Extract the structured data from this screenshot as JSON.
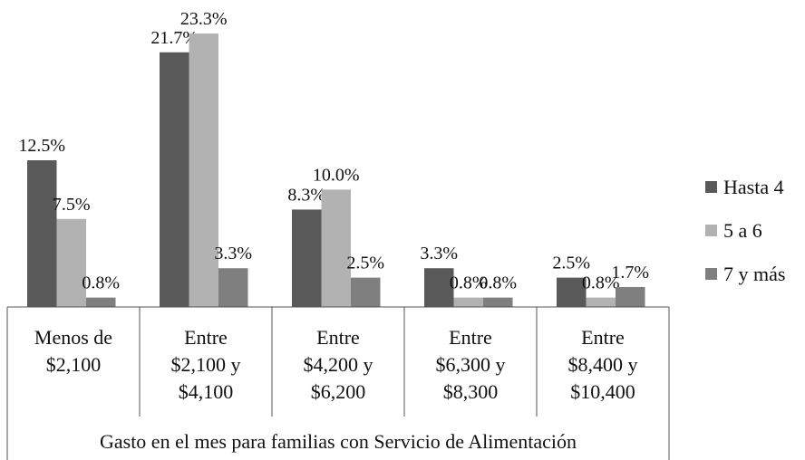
{
  "chart_data": {
    "type": "bar",
    "x_label": "Gasto en el mes para familias con Servicio de Alimentación",
    "categories": [
      "Menos de $2,100",
      "Entre $2,100 y $4,100",
      "Entre $4,200 y $6,200",
      "Entre $6,300 y $8,300",
      "Entre $8,400 y $10,400"
    ],
    "series": [
      {
        "name": "Hasta 4",
        "color": "#595959",
        "values": [
          12.5,
          21.7,
          8.3,
          3.3,
          2.5
        ],
        "value_labels": [
          "12.5%",
          "21.7%",
          "8.3%",
          "3.3%",
          "2.5%"
        ]
      },
      {
        "name": "5 a 6",
        "color": "#b2b2b2",
        "values": [
          7.5,
          23.3,
          10.0,
          0.8,
          0.8
        ],
        "value_labels": [
          "7.5%",
          "23.3%",
          "10.0%",
          "0.8%",
          "0.8%"
        ]
      },
      {
        "name": "7 y más",
        "color": "#7f7f7f",
        "values": [
          0.8,
          3.3,
          2.5,
          0.8,
          1.7
        ],
        "value_labels": [
          "0.8%",
          "3.3%",
          "2.5%",
          "0.8%",
          "1.7%"
        ]
      }
    ],
    "ylim": [
      0,
      25
    ],
    "legend": "right"
  }
}
